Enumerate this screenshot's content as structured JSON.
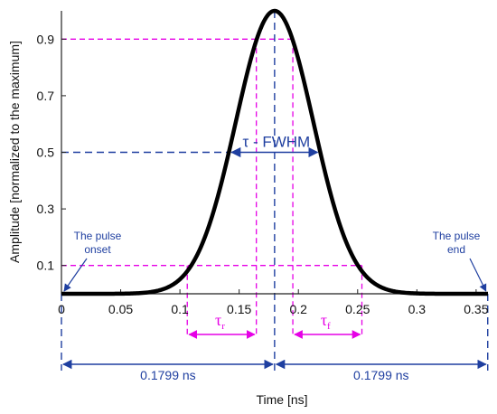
{
  "chart_data": {
    "type": "line",
    "xlabel": "Time [ns]",
    "ylabel": "Amplitude [normalized to the maximum]",
    "xlim": [
      0,
      0.36
    ],
    "ylim": [
      0,
      1.0
    ],
    "x_ticks": [
      "0",
      "0.05",
      "0.1",
      "0.15",
      "0.2",
      "0.25",
      "0.3",
      "0.35"
    ],
    "x_tick_values": [
      0,
      0.05,
      0.1,
      0.15,
      0.2,
      0.25,
      0.3,
      0.35
    ],
    "y_ticks": [
      "0.1",
      "0.3",
      "0.5",
      "0.7",
      "0.9"
    ],
    "y_tick_values": [
      0.1,
      0.3,
      0.5,
      0.7,
      0.9
    ],
    "series": [
      {
        "color": "#000000",
        "x": [
          0,
          0.02,
          0.04,
          0.06,
          0.08,
          0.09,
          0.1,
          0.11,
          0.12,
          0.13,
          0.14,
          0.15,
          0.16,
          0.17,
          0.1799,
          0.19,
          0.2,
          0.21,
          0.22,
          0.23,
          0.24,
          0.25,
          0.26,
          0.27,
          0.28,
          0.3,
          0.32,
          0.34,
          0.36
        ],
        "y": [
          0.0,
          0.0,
          0.0,
          0.001,
          0.008,
          0.02,
          0.046,
          0.096,
          0.183,
          0.312,
          0.477,
          0.658,
          0.826,
          0.952,
          1.0,
          0.952,
          0.826,
          0.658,
          0.477,
          0.312,
          0.183,
          0.096,
          0.046,
          0.02,
          0.008,
          0.001,
          0.0,
          0.0,
          0.0
        ]
      }
    ],
    "annotations": {
      "fwhm_label": "τ - FWHM",
      "rise_label": "τ",
      "rise_sub": "r",
      "fall_label": "τ",
      "fall_sub": "f",
      "onset_label": [
        "The pulse",
        "onset"
      ],
      "end_label": [
        "The pulse",
        "end"
      ],
      "left_span_label": "0.1799 ns",
      "right_span_label": "0.1799 ns",
      "onset_x": 0,
      "peak_x": 0.1799,
      "end_x": 0.3598,
      "half_max_x": [
        0.1413,
        0.2185
      ],
      "ten_percent_x": [
        0.1062,
        0.2536
      ],
      "ninety_percent_x": [
        0.1645,
        0.1953
      ],
      "rise_span_x": [
        0.1062,
        0.1645
      ],
      "fall_span_x": [
        0.1953,
        0.2536
      ]
    }
  },
  "colors": {
    "curve": "#000000",
    "blue": "#1f3fa0",
    "magenta": "#e600e6",
    "axis": "#222222"
  }
}
